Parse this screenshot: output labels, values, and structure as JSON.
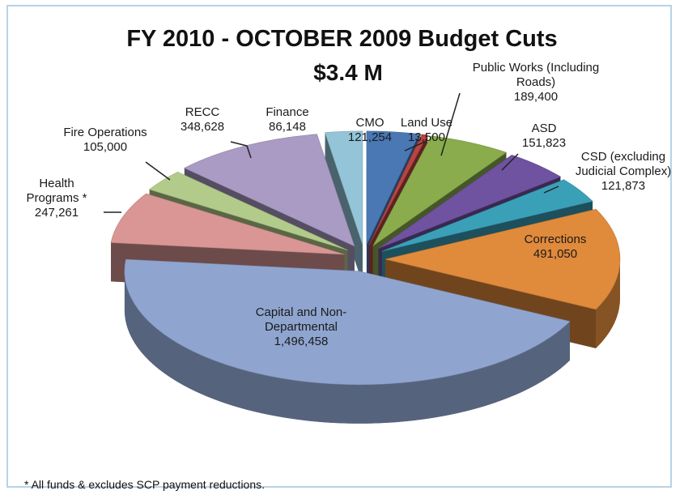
{
  "chart_data": {
    "type": "pie3d",
    "title": "FY 2010 -  OCTOBER 2009 Budget Cuts",
    "subtitle": "$3.4 M",
    "footnote": "* All funds & excludes SCP payment reductions.",
    "categories": [
      "CMO",
      "Land Use",
      "Public Works (Including Roads)",
      "ASD",
      "CSD (excluding Judicial Complex)",
      "Corrections",
      "Capital and Non-Departmental",
      "Health Programs *",
      "Fire Operations",
      "RECC",
      "Finance"
    ],
    "values": [
      121254,
      13500,
      189400,
      151823,
      121873,
      491050,
      1496458,
      247261,
      105000,
      348628,
      86148
    ],
    "value_labels": [
      "121,254",
      "13,500",
      "189,400",
      "151,823",
      "121,873",
      "491,050",
      "1,496,458",
      "247,261",
      "105,000",
      "348,628",
      "86,148"
    ],
    "colors": [
      "#4a78b5",
      "#b94441",
      "#8aac4d",
      "#6f52a0",
      "#3aa0b8",
      "#e08a3c",
      "#8fa5d0",
      "#d99694",
      "#b3cb8a",
      "#a99bc4",
      "#93c4d8"
    ]
  }
}
